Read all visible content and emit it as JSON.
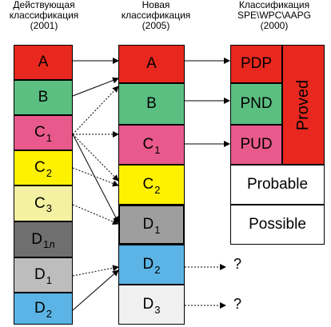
{
  "headers": {
    "current": "Действующая\nклассификация\n(2001)",
    "new": "Новая\nклассификация\n(2005)",
    "spe": "Классификация\nSPE\\WPC\\AAPG\n(2000)"
  },
  "left_column": [
    {
      "label": "A",
      "sub": "",
      "color": "#e8281f"
    },
    {
      "label": "B",
      "sub": "",
      "color": "#5bbf82"
    },
    {
      "label": "C",
      "sub": "1",
      "color": "#e85a8b"
    },
    {
      "label": "C",
      "sub": "2",
      "color": "#fff200"
    },
    {
      "label": "C",
      "sub": "3",
      "color": "#f4f1a2"
    },
    {
      "label": "D",
      "sub": "1л",
      "color": "#6f6f6f"
    },
    {
      "label": "D",
      "sub": "1",
      "color": "#bdbdbd"
    },
    {
      "label": "D",
      "sub": "2",
      "color": "#5bb4e5"
    }
  ],
  "middle_column": [
    {
      "label": "A",
      "sub": "",
      "color": "#e8281f"
    },
    {
      "label": "B",
      "sub": "",
      "color": "#5bbf82"
    },
    {
      "label": "C",
      "sub": "1",
      "color": "#e85a8b"
    },
    {
      "label": "C",
      "sub": "2",
      "color": "#fff200"
    },
    {
      "label": "D",
      "sub": "1",
      "color": "#9e9e9e"
    },
    {
      "label": "D",
      "sub": "2",
      "color": "#5bb4e5"
    },
    {
      "label": "D",
      "sub": "3",
      "color": "#f0f0f0"
    }
  ],
  "spe_column": {
    "pdp": {
      "label": "PDP",
      "color": "#e8281f"
    },
    "pnd": {
      "label": "PND",
      "color": "#5bbf82"
    },
    "pud": {
      "label": "PUD",
      "color": "#e85a8b"
    },
    "proved": {
      "label": "Proved",
      "color": "#e8281f"
    },
    "probable": "Probable",
    "possible": "Possible"
  },
  "unknown_marks": [
    "?",
    "?"
  ]
}
